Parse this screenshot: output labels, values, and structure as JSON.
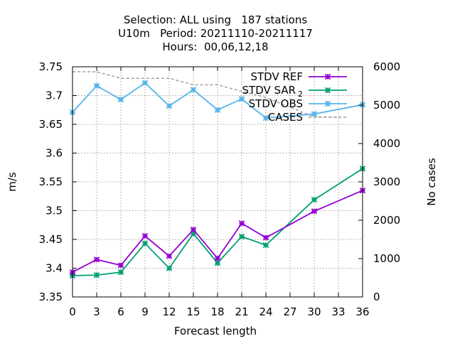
{
  "chart_data": {
    "type": "line",
    "title": [
      "Selection: ALL using   187 stations",
      "U10m   Period: 20211110-20211117",
      "Hours:  00,06,12,18"
    ],
    "xlabel": "Forecast length",
    "ylabel": "m/s",
    "y2label": "No cases",
    "xlim": [
      0,
      36
    ],
    "ylim": [
      3.35,
      3.75
    ],
    "y2lim": [
      0,
      6000
    ],
    "xticks": [
      "0",
      "3",
      "6",
      "9",
      "12",
      "15",
      "18",
      "21",
      "24",
      "27",
      "30",
      "33",
      "36"
    ],
    "yticks": [
      "3.35",
      "3.4",
      "3.45",
      "3.5",
      "3.55",
      "3.6",
      "3.65",
      "3.7",
      "3.75"
    ],
    "y2ticks": [
      "0",
      "1000",
      "2000",
      "3000",
      "4000",
      "5000",
      "6000"
    ],
    "grid": true,
    "legend_position": "top-right",
    "colors": {
      "ref": "#9400d3",
      "sar": "#009e73",
      "obs": "#56b4e9",
      "cases": "#a0a0a0"
    },
    "series": [
      {
        "key": "ref",
        "name": "STDV REF",
        "axis": "left",
        "x": [
          0,
          3,
          6,
          9,
          12,
          15,
          18,
          21,
          24,
          30,
          36
        ],
        "y": [
          3.393,
          3.415,
          3.405,
          3.456,
          3.421,
          3.467,
          3.417,
          3.478,
          3.453,
          3.499,
          3.535
        ]
      },
      {
        "key": "sar",
        "name_main": "STDV SAR",
        "name_sub": "2",
        "axis": "left",
        "x": [
          0,
          3,
          6,
          9,
          12,
          15,
          18,
          21,
          24,
          30,
          36
        ],
        "y": [
          3.387,
          3.388,
          3.393,
          3.443,
          3.4,
          3.46,
          3.409,
          3.455,
          3.44,
          3.519,
          3.573
        ]
      },
      {
        "key": "obs",
        "name": "STDV OBS",
        "axis": "left",
        "x": [
          0,
          3,
          6,
          9,
          12,
          15,
          18,
          21,
          24,
          30,
          36
        ],
        "y": [
          3.671,
          3.717,
          3.693,
          3.722,
          3.682,
          3.71,
          3.675,
          3.694,
          3.661,
          3.668,
          3.684
        ]
      },
      {
        "key": "cases",
        "name": "CASES",
        "axis": "right",
        "x": [
          0,
          3,
          6,
          9,
          12,
          15,
          18,
          21,
          24,
          30,
          33
        ],
        "y": [
          5870,
          5870,
          5700,
          5700,
          5700,
          5530,
          5530,
          5360,
          5200,
          4690,
          4690
        ]
      }
    ]
  }
}
